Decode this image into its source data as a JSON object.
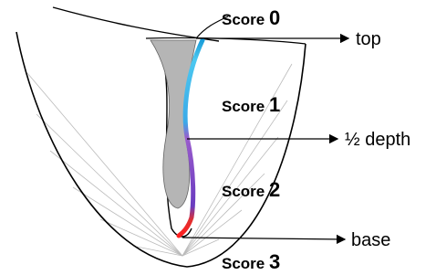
{
  "scores": [
    {
      "word": "Score",
      "num": 0
    },
    {
      "word": "Score",
      "num": 1
    },
    {
      "word": "Score",
      "num": 2
    },
    {
      "word": "Score",
      "num": 3
    }
  ],
  "levels": [
    "top",
    "½ depth",
    "base"
  ]
}
